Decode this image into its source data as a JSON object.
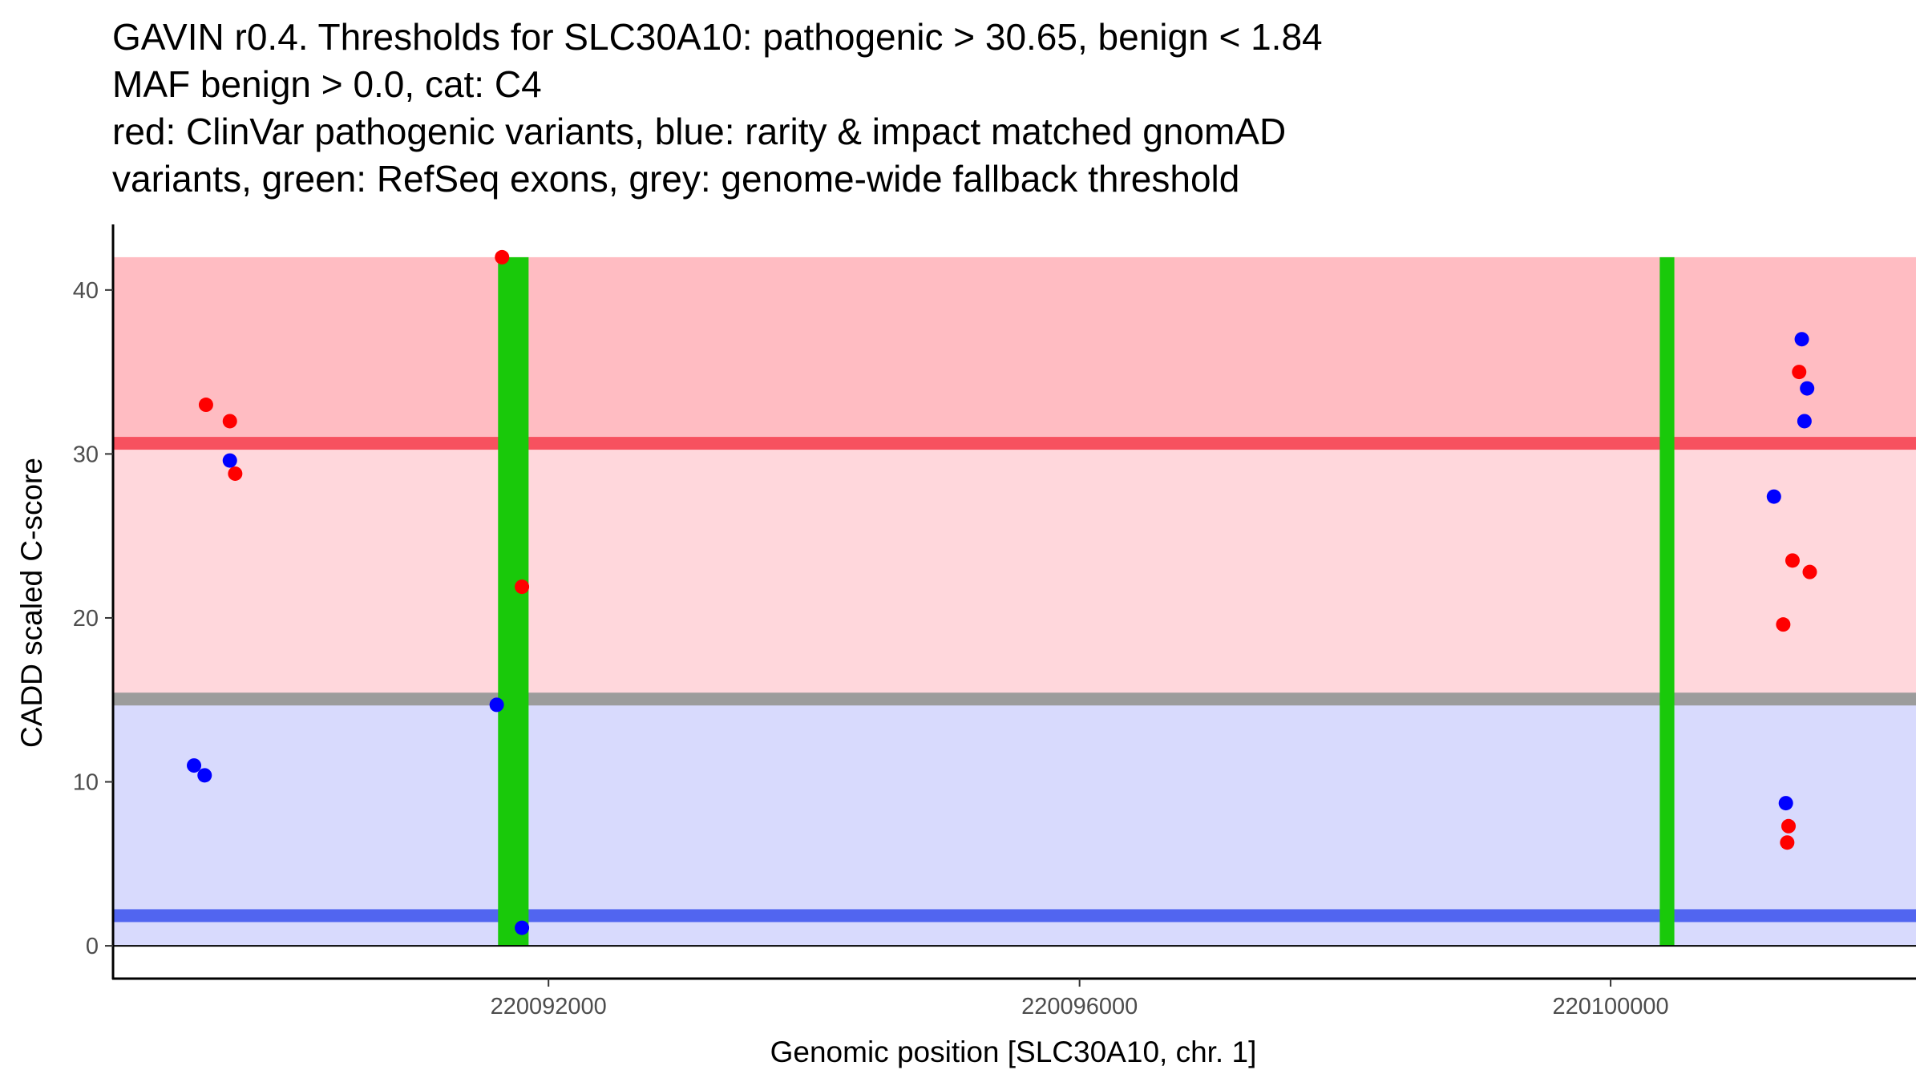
{
  "chart_data": {
    "type": "scatter",
    "title_lines": [
      "GAVIN r0.4. Thresholds for SLC30A10: pathogenic > 30.65, benign < 1.84",
      "MAF benign > 0.0, cat: C4",
      "red: ClinVar pathogenic variants, blue: rarity & impact matched gnomAD",
      "variants, green: RefSeq exons, grey: genome-wide fallback threshold"
    ],
    "xlabel": "Genomic position [SLC30A10, chr. 1]",
    "ylabel": "CADD scaled C-score",
    "xlim": [
      220088720,
      220102300
    ],
    "ylim": [
      -2,
      44
    ],
    "x_ticks": [
      220092000,
      220096000,
      220100000
    ],
    "y_ticks": [
      0,
      10,
      20,
      30,
      40
    ],
    "grid": false,
    "regions": {
      "pathogenic_zone": {
        "from": 30.65,
        "to": 42,
        "color": "#ffbcc2"
      },
      "mid_zone": {
        "from": 15.3,
        "to": 30.65,
        "color": "#ffd7dc"
      },
      "benign_zone": {
        "from": 0,
        "to": 15.3,
        "color": "#d8dafd"
      }
    },
    "thresholds": [
      {
        "name": "pathogenic",
        "value": 30.65,
        "color": "#f7515f"
      },
      {
        "name": "genome-wide fallback",
        "value": 15.05,
        "color": "#9c9c9c"
      },
      {
        "name": "benign",
        "value": 1.84,
        "color": "#5165f0"
      }
    ],
    "exons": [
      {
        "start": 220091620,
        "end": 220091850,
        "color": "#19c90a"
      },
      {
        "start": 220100370,
        "end": 220100480,
        "color": "#19c90a"
      }
    ],
    "series": [
      {
        "name": "ClinVar pathogenic",
        "color": "#ff0000",
        "x": [
          220089420,
          220089600,
          220089640,
          220091650,
          220091800,
          220101300,
          220101330,
          220101340,
          220101370,
          220101420,
          220101500
        ],
        "y": [
          33.0,
          32.0,
          28.8,
          42.0,
          21.9,
          19.6,
          6.3,
          7.3,
          23.5,
          35.0,
          22.8
        ]
      },
      {
        "name": "gnomAD",
        "color": "#0000ff",
        "x": [
          220089330,
          220089410,
          220089600,
          220091610,
          220091800,
          220101230,
          220101320,
          220101440,
          220101460,
          220101480
        ],
        "y": [
          11.0,
          10.4,
          29.6,
          14.7,
          1.1,
          27.4,
          8.7,
          37.0,
          32.0,
          34.0
        ]
      }
    ]
  }
}
